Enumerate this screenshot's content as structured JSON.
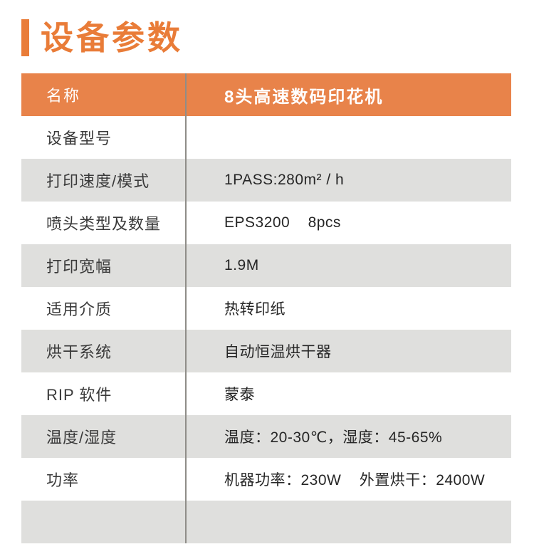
{
  "title": {
    "text": "设备参数"
  },
  "colors": {
    "accent_orange": "#E97C38",
    "header_orange": "#E8834A",
    "row_alt_gray": "#DFDFDD",
    "divider_gray": "#8F8D88",
    "header_text": "#FFFFFF",
    "label_text": "#3A3A3A",
    "value_text": "#262626"
  },
  "table": {
    "header": {
      "label": "名称",
      "value": "8头高速数码印花机"
    },
    "rows": [
      {
        "label": "设备型号",
        "value": ""
      },
      {
        "label": "打印速度/模式",
        "value": "1PASS:280m² / h"
      },
      {
        "label": "喷头类型及数量",
        "value": "EPS3200    8pcs"
      },
      {
        "label": "打印宽幅",
        "value": "1.9M"
      },
      {
        "label": "适用介质",
        "value": "热转印纸"
      },
      {
        "label": "烘干系统",
        "value": "自动恒温烘干器"
      },
      {
        "label": "RIP 软件",
        "value": "蒙泰"
      },
      {
        "label": "温度/湿度",
        "value": "温度：20-30℃，湿度：45-65%"
      },
      {
        "label": "功率",
        "value": "机器功率：230W    外置烘干：2400W"
      },
      {
        "label": "",
        "value": ""
      }
    ]
  }
}
